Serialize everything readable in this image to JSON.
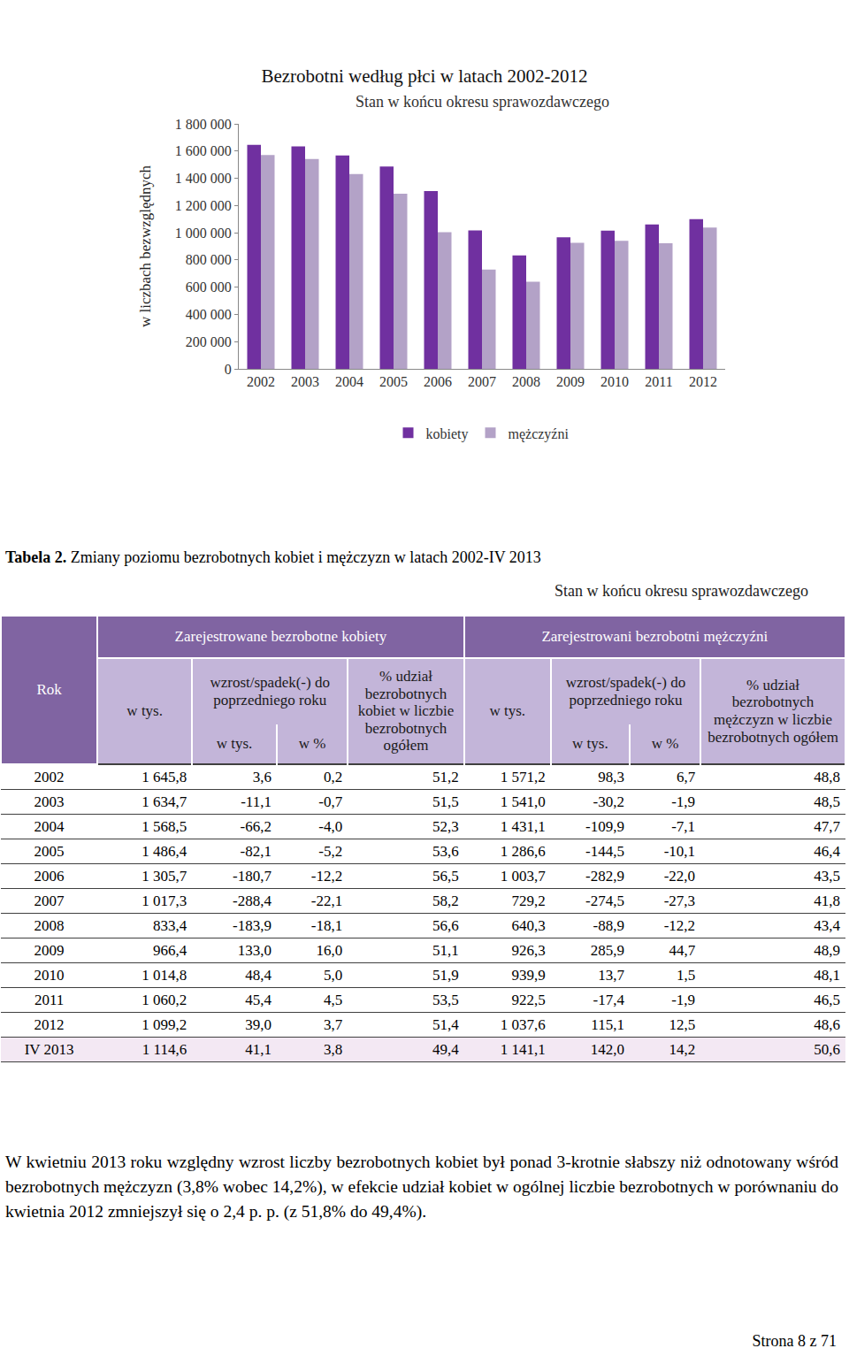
{
  "chart_data": {
    "type": "bar",
    "title": "Bezrobotni według płci w latach 2002-2012",
    "subtitle": "Stan w końcu okresu sprawozdawczego",
    "y_label": "w liczbach bezwzględnych",
    "categories": [
      "2002",
      "2003",
      "2004",
      "2005",
      "2006",
      "2007",
      "2008",
      "2009",
      "2010",
      "2011",
      "2012"
    ],
    "series": [
      {
        "name": "kobiety",
        "color": "#7030a0",
        "values": [
          1645800,
          1634700,
          1568500,
          1486400,
          1305700,
          1017300,
          833400,
          966400,
          1014800,
          1060200,
          1099200
        ]
      },
      {
        "name": "mężczyźni",
        "color": "#b3a2c7",
        "values": [
          1571200,
          1541000,
          1431100,
          1286600,
          1003700,
          729200,
          640300,
          926300,
          939900,
          922500,
          1037600
        ]
      }
    ],
    "ylim": [
      0,
      1800000
    ],
    "yticks": [
      0,
      {
        "value": 200000,
        "label": "200 000"
      },
      {
        "value": 400000,
        "label": "400 000"
      },
      {
        "value": 600000,
        "label": "600 000"
      },
      {
        "value": 800000,
        "label": "800 000"
      },
      {
        "value": 1000000,
        "label": "1 000 000"
      },
      {
        "value": 1200000,
        "label": "1 200 000"
      },
      {
        "value": 1400000,
        "label": "1 400 000"
      },
      {
        "value": 1600000,
        "label": "1 600 000"
      },
      {
        "value": 1800000,
        "label": "1 800 000"
      }
    ],
    "grid": false,
    "legend": "bottom"
  },
  "table": {
    "caption_label": "Tabela 2.",
    "caption": "Zmiany poziomu bezrobotnych kobiet i mężczyzn w latach 2002-IV 2013",
    "note": "Stan w końcu okresu sprawozdawczego",
    "header": {
      "year": "Rok",
      "groups": [
        {
          "title": "Zarejestrowane bezrobotne kobiety",
          "count": "w tys.",
          "change": "wzrost/spadek(-) do poprzedniego roku",
          "change_abs": "w tys.",
          "change_pct": "w %",
          "share": "% udział bezrobotnych kobiet w liczbie bezrobotnych ogółem"
        },
        {
          "title": "Zarejestrowani bezrobotni mężczyźni",
          "count": "w tys.",
          "change": "wzrost/spadek(-) do poprzedniego roku",
          "change_abs": "w tys.",
          "change_pct": "w %",
          "share": "% udział bezrobotnych mężczyzn w liczbie bezrobotnych ogółem"
        }
      ]
    },
    "rows": [
      [
        "2002",
        "1 645,8",
        "3,6",
        "0,2",
        "51,2",
        "1 571,2",
        "98,3",
        "6,7",
        "48,8"
      ],
      [
        "2003",
        "1 634,7",
        "-11,1",
        "-0,7",
        "51,5",
        "1 541,0",
        "-30,2",
        "-1,9",
        "48,5"
      ],
      [
        "2004",
        "1 568,5",
        "-66,2",
        "-4,0",
        "52,3",
        "1 431,1",
        "-109,9",
        "-7,1",
        "47,7"
      ],
      [
        "2005",
        "1 486,4",
        "-82,1",
        "-5,2",
        "53,6",
        "1 286,6",
        "-144,5",
        "-10,1",
        "46,4"
      ],
      [
        "2006",
        "1 305,7",
        "-180,7",
        "-12,2",
        "56,5",
        "1 003,7",
        "-282,9",
        "-22,0",
        "43,5"
      ],
      [
        "2007",
        "1 017,3",
        "-288,4",
        "-22,1",
        "58,2",
        "729,2",
        "-274,5",
        "-27,3",
        "41,8"
      ],
      [
        "2008",
        "833,4",
        "-183,9",
        "-18,1",
        "56,6",
        "640,3",
        "-88,9",
        "-12,2",
        "43,4"
      ],
      [
        "2009",
        "966,4",
        "133,0",
        "16,0",
        "51,1",
        "926,3",
        "285,9",
        "44,7",
        "48,9"
      ],
      [
        "2010",
        "1 014,8",
        "48,4",
        "5,0",
        "51,9",
        "939,9",
        "13,7",
        "1,5",
        "48,1"
      ],
      [
        "2011",
        "1 060,2",
        "45,4",
        "4,5",
        "53,5",
        "922,5",
        "-17,4",
        "-1,9",
        "46,5"
      ],
      [
        "2012",
        "1 099,2",
        "39,0",
        "3,7",
        "51,4",
        "1 037,6",
        "115,1",
        "12,5",
        "48,6"
      ],
      [
        "IV 2013",
        "1 114,6",
        "41,1",
        "3,8",
        "49,4",
        "1 141,1",
        "142,0",
        "14,2",
        "50,6"
      ]
    ]
  },
  "paragraph": "W kwietniu 2013 roku względny wzrost liczby bezrobotnych kobiet był ponad 3-krotnie słabszy niż odnotowany wśród bezrobotnych mężczyzn (3,8% wobec 14,2%), w efekcie udział kobiet w ogólnej liczbie bezrobotnych w porównaniu do kwietnia 2012 zmniejszył się o 2,4 p. p. (z 51,8% do 49,4%).",
  "footer": "Strona 8 z 71"
}
